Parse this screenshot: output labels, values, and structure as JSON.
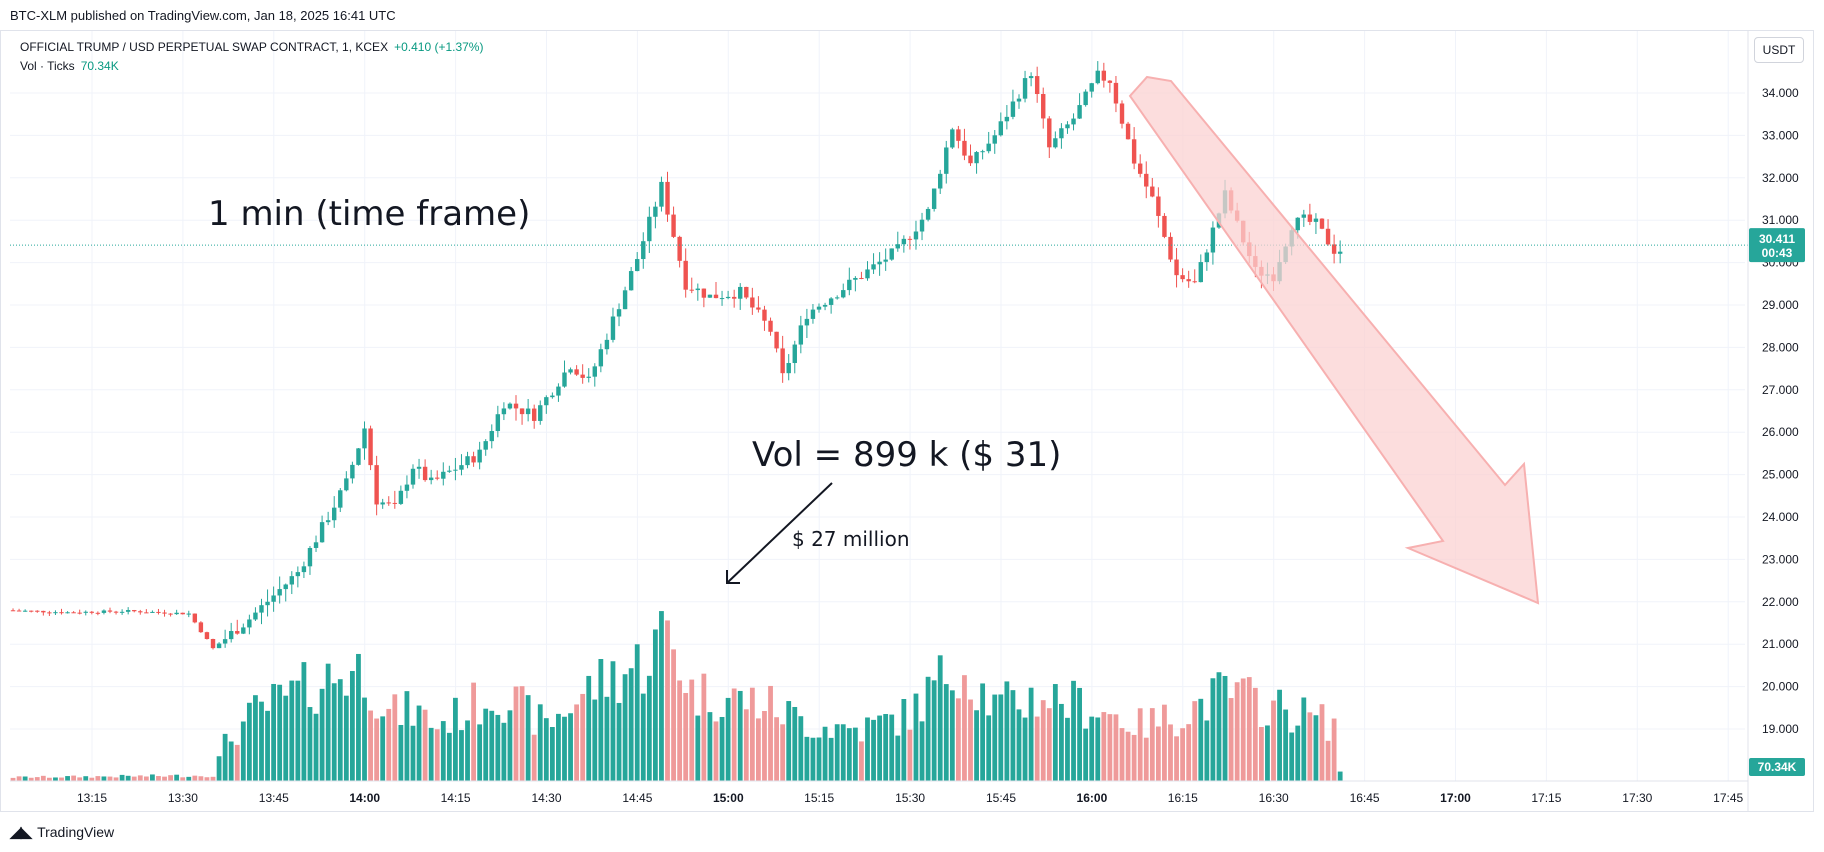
{
  "header": {
    "published_line": "BTC-XLM published on TradingView.com, Jan 18, 2025 16:41 UTC"
  },
  "legend": {
    "symbol": "OFFICIAL TRUMP / USD PERPETUAL SWAP CONTRACT, 1, KCEX",
    "change": "+0.410 (+1.37%)",
    "volume_label": "Vol · Ticks",
    "volume_value": "70.34K"
  },
  "toolbar": {
    "currency": "USDT"
  },
  "footer": {
    "brand": "TradingView",
    "brand_icon": "tradingview-logo-icon"
  },
  "colors": {
    "up": "#26a69a",
    "down": "#ef5350",
    "vol_up": "#26a69a",
    "vol_down": "#ef9a9a",
    "price_line": "#26a69a",
    "arrow_fill": "#fbd2d2",
    "arrow_stroke": "#f7b0b0"
  },
  "chart_data": {
    "type": "candlestick",
    "price_axis": {
      "ticks": [
        "34.000",
        "33.000",
        "32.000",
        "31.000",
        "30.000",
        "29.000",
        "28.000",
        "27.000",
        "26.000",
        "25.000",
        "24.000",
        "23.000",
        "22.000",
        "21.000",
        "20.000",
        "19.000"
      ],
      "range": [
        18.1,
        34.9
      ]
    },
    "time_axis": {
      "ticks": [
        "13:15",
        "13:30",
        "13:45",
        "14:00",
        "14:15",
        "14:30",
        "14:45",
        "15:00",
        "15:15",
        "15:30",
        "15:45",
        "16:00",
        "16:15",
        "16:30",
        "16:45",
        "17:00",
        "17:15",
        "17:30",
        "17:45"
      ],
      "bold_ticks": [
        "14:00",
        "15:00",
        "16:00",
        "17:00"
      ]
    },
    "last_price": {
      "value": 30.411,
      "label": "30.411",
      "countdown": "00:43"
    },
    "last_volume": {
      "label": "70.34K"
    },
    "anchors": [
      {
        "t": 0,
        "p": 21.8
      },
      {
        "t": 10,
        "p": 21.75
      },
      {
        "t": 20,
        "p": 21.78
      },
      {
        "t": 30,
        "p": 21.72
      },
      {
        "t": 34,
        "p": 20.9
      },
      {
        "t": 40,
        "p": 21.6
      },
      {
        "t": 48,
        "p": 22.7
      },
      {
        "t": 56,
        "p": 24.8
      },
      {
        "t": 59,
        "p": 26.1
      },
      {
        "t": 61,
        "p": 24.4
      },
      {
        "t": 64,
        "p": 24.2
      },
      {
        "t": 67,
        "p": 25.2
      },
      {
        "t": 70,
        "p": 24.8
      },
      {
        "t": 78,
        "p": 25.5
      },
      {
        "t": 82,
        "p": 26.7
      },
      {
        "t": 87,
        "p": 26.4
      },
      {
        "t": 93,
        "p": 27.6
      },
      {
        "t": 96,
        "p": 27.2
      },
      {
        "t": 104,
        "p": 30.1
      },
      {
        "t": 108,
        "p": 31.8
      },
      {
        "t": 112,
        "p": 29.5
      },
      {
        "t": 116,
        "p": 29.2
      },
      {
        "t": 121,
        "p": 29.3
      },
      {
        "t": 126,
        "p": 28.4
      },
      {
        "t": 128,
        "p": 27.3
      },
      {
        "t": 132,
        "p": 28.8
      },
      {
        "t": 140,
        "p": 29.6
      },
      {
        "t": 147,
        "p": 30.3
      },
      {
        "t": 152,
        "p": 31.2
      },
      {
        "t": 156,
        "p": 33.2
      },
      {
        "t": 159,
        "p": 32.3
      },
      {
        "t": 163,
        "p": 33.0
      },
      {
        "t": 169,
        "p": 34.5
      },
      {
        "t": 172,
        "p": 32.7
      },
      {
        "t": 176,
        "p": 33.4
      },
      {
        "t": 180,
        "p": 34.4
      },
      {
        "t": 182,
        "p": 34.3
      },
      {
        "t": 186,
        "p": 32.4
      },
      {
        "t": 189,
        "p": 31.5
      },
      {
        "t": 193,
        "p": 29.7
      },
      {
        "t": 196,
        "p": 29.5
      },
      {
        "t": 201,
        "p": 31.6
      },
      {
        "t": 206,
        "p": 29.8
      },
      {
        "t": 209,
        "p": 29.7
      },
      {
        "t": 212,
        "p": 30.9
      },
      {
        "t": 214,
        "p": 31.0
      },
      {
        "t": 216,
        "p": 30.9
      },
      {
        "t": 219,
        "p": 30.3
      }
    ],
    "volume_anchors": [
      {
        "t": 0,
        "v": 2
      },
      {
        "t": 33,
        "v": 3
      },
      {
        "t": 35,
        "v": 20
      },
      {
        "t": 40,
        "v": 37
      },
      {
        "t": 54,
        "v": 58
      },
      {
        "t": 58,
        "v": 60
      },
      {
        "t": 62,
        "v": 36
      },
      {
        "t": 66,
        "v": 38
      },
      {
        "t": 70,
        "v": 30
      },
      {
        "t": 80,
        "v": 48
      },
      {
        "t": 88,
        "v": 30
      },
      {
        "t": 96,
        "v": 52
      },
      {
        "t": 104,
        "v": 64
      },
      {
        "t": 108,
        "v": 82
      },
      {
        "t": 112,
        "v": 48
      },
      {
        "t": 124,
        "v": 42
      },
      {
        "t": 132,
        "v": 30
      },
      {
        "t": 140,
        "v": 28
      },
      {
        "t": 148,
        "v": 36
      },
      {
        "t": 156,
        "v": 65
      },
      {
        "t": 162,
        "v": 40
      },
      {
        "t": 170,
        "v": 46
      },
      {
        "t": 178,
        "v": 40
      },
      {
        "t": 186,
        "v": 30
      },
      {
        "t": 192,
        "v": 35
      },
      {
        "t": 200,
        "v": 48
      },
      {
        "t": 208,
        "v": 40
      },
      {
        "t": 214,
        "v": 35
      },
      {
        "t": 218,
        "v": 30
      },
      {
        "t": 219,
        "v": 6
      }
    ],
    "annotations": {
      "timeframe": "1 min (time frame)",
      "volume_note": "Vol = 899 k ($ 31)",
      "dollar_note": "$ 27 million"
    }
  }
}
